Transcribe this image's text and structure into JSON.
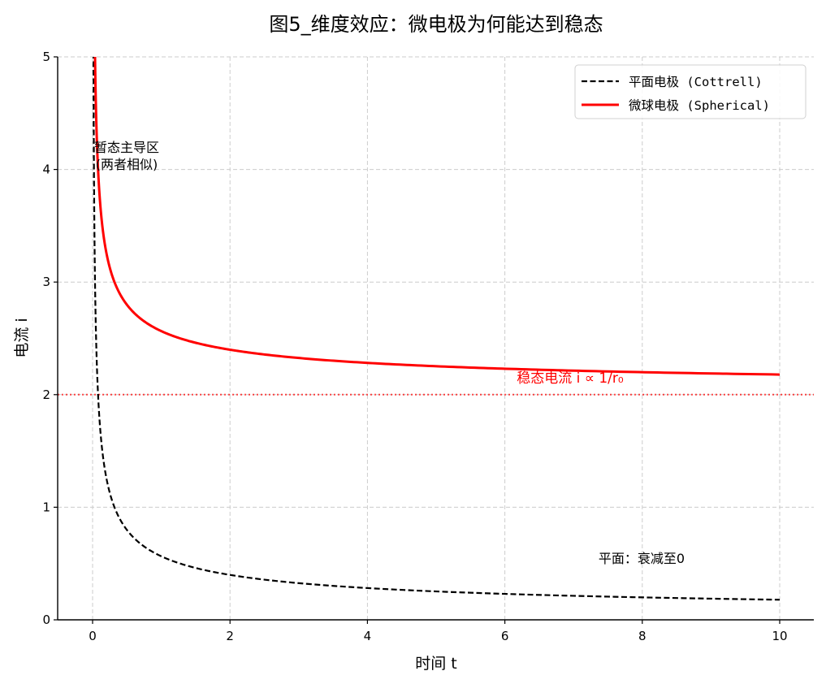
{
  "chart_data": {
    "type": "line",
    "title": "图5_维度效应：微电极为何能达到稳态",
    "xlabel": "时间 t",
    "ylabel": "电流 i",
    "xlim": [
      -0.5,
      10.5
    ],
    "ylim": [
      0,
      5
    ],
    "xticks": [
      0,
      2,
      4,
      6,
      8,
      10
    ],
    "yticks": [
      0,
      1,
      2,
      3,
      4,
      5
    ],
    "grid": true,
    "legend_position": "upper right",
    "series": [
      {
        "name": "平面电极 (Cottrell)",
        "style": "dashed",
        "color": "#000000",
        "formula": "i = 1/sqrt(pi*t)",
        "x": [
          0.01,
          0.02,
          0.05,
          0.08,
          0.1,
          0.15,
          0.2,
          0.3,
          0.4,
          0.5,
          0.7,
          1,
          1.5,
          2,
          3,
          4,
          5,
          6,
          7,
          8,
          9,
          10
        ],
        "values": [
          5.64,
          3.99,
          2.52,
          1.99,
          1.78,
          1.46,
          1.26,
          1.03,
          0.89,
          0.8,
          0.67,
          0.56,
          0.46,
          0.4,
          0.33,
          0.28,
          0.25,
          0.23,
          0.21,
          0.2,
          0.19,
          0.18
        ]
      },
      {
        "name": "微球电极 (Spherical)",
        "style": "solid",
        "color": "#ff0000",
        "formula": "i = 1/sqrt(pi*t) + 2",
        "x": [
          0.01,
          0.02,
          0.05,
          0.08,
          0.1,
          0.15,
          0.2,
          0.3,
          0.4,
          0.5,
          0.7,
          1,
          1.5,
          2,
          3,
          4,
          5,
          6,
          7,
          8,
          9,
          10
        ],
        "values": [
          7.64,
          5.99,
          4.52,
          3.99,
          3.78,
          3.46,
          3.26,
          3.03,
          2.89,
          2.8,
          2.67,
          2.56,
          2.46,
          2.4,
          2.33,
          2.28,
          2.25,
          2.23,
          2.21,
          2.2,
          2.19,
          2.18
        ]
      }
    ],
    "reference_lines": [
      {
        "axis": "y",
        "value": 2,
        "style": "dotted",
        "color": "#ff0000"
      }
    ],
    "annotations": [
      {
        "text": "暂态主导区",
        "x": 0.5,
        "y": 4.15
      },
      {
        "text": "(两者相似)",
        "x": 0.5,
        "y": 4.02
      },
      {
        "text": "稳态电流 i ∝ 1/r₀",
        "x": 7.0,
        "y": 2.12,
        "color": "#ff0000"
      },
      {
        "text": "平面：衰减至0",
        "x": 8.0,
        "y": 0.5
      }
    ]
  }
}
